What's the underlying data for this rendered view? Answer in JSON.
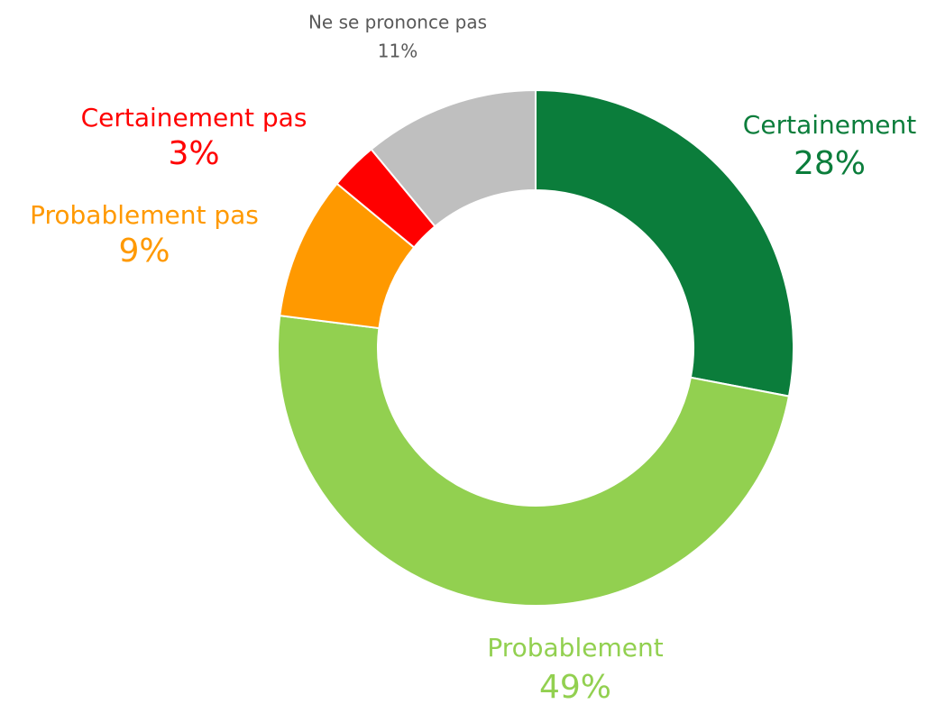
{
  "chart_data": {
    "type": "donut",
    "categories": [
      "Certainement",
      "Probablement",
      "Probablement pas",
      "Certainement pas",
      "Ne se prononce pas"
    ],
    "values": [
      28,
      49,
      9,
      3,
      11
    ],
    "value_labels": [
      "28%",
      "49%",
      "9%",
      "3%",
      "11%"
    ],
    "colors": [
      "#0b7d3b",
      "#92d050",
      "#ff9900",
      "#ff0000",
      "#bfbfbf"
    ],
    "label_colors": [
      "#0b7d3b",
      "#92d050",
      "#ff9900",
      "#ff0000",
      "#595959"
    ]
  }
}
